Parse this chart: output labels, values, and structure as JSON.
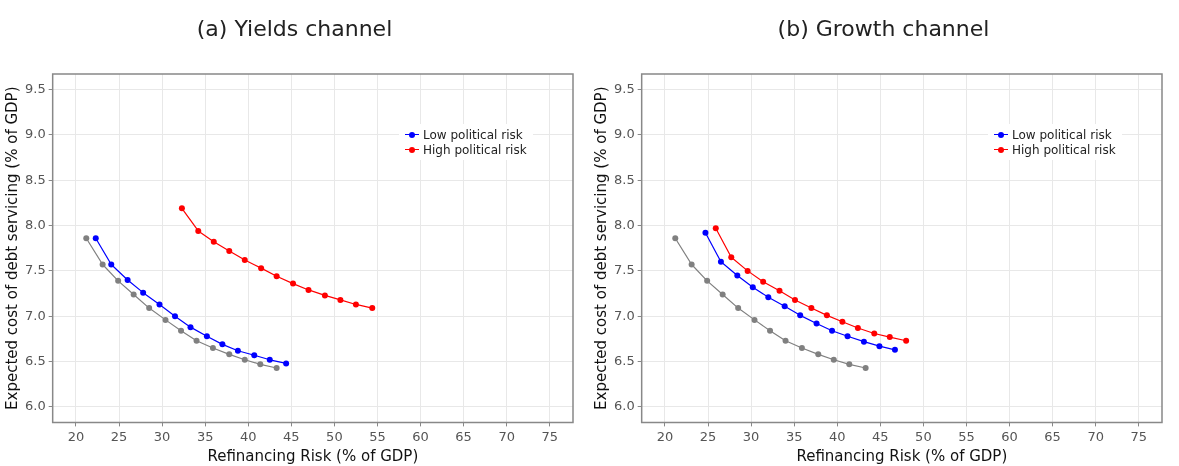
{
  "chart_data": [
    {
      "type": "line",
      "title": "(a) Yields channel",
      "xlabel": "Refinancing Risk (% of GDP)",
      "ylabel": "Expected cost of debt servicing (% of GDP)",
      "xlim": [
        17.3,
        77.7
      ],
      "ylim": [
        5.83,
        9.67
      ],
      "xticks": [
        20,
        25,
        30,
        35,
        40,
        45,
        50,
        55,
        60,
        65,
        70,
        75
      ],
      "yticks": [
        {
          "value": 6,
          "label": "6.0"
        },
        6.5,
        {
          "value": 7,
          "label": "7.0"
        },
        7.5,
        {
          "value": 8,
          "label": "8.0"
        },
        8.5,
        {
          "value": 9,
          "label": "9.0"
        },
        9.5
      ],
      "grid": true,
      "legend": "top right",
      "marker": "circle",
      "line_style": "solid",
      "series": [
        {
          "color": "#808080",
          "x": [
            21.2,
            23.1,
            24.9,
            26.7,
            28.5,
            30.4,
            32.2,
            34.0,
            35.9,
            37.8,
            39.6,
            41.4,
            43.3
          ],
          "values": [
            7.86,
            7.57,
            7.39,
            7.24,
            7.09,
            6.96,
            6.84,
            6.73,
            6.65,
            6.58,
            6.52,
            6.47,
            6.43
          ]
        },
        {
          "name": "Low political risk",
          "color": "#0000ff",
          "x": [
            22.3,
            24.1,
            26.0,
            27.8,
            29.7,
            31.5,
            33.3,
            35.2,
            37.0,
            38.8,
            40.7,
            42.5,
            44.4
          ],
          "values": [
            7.86,
            7.57,
            7.4,
            7.26,
            7.13,
            7.0,
            6.88,
            6.78,
            6.69,
            6.62,
            6.57,
            6.52,
            6.48
          ]
        },
        {
          "name": "High political risk",
          "color": "#ff0000",
          "x": [
            32.3,
            34.2,
            36.0,
            37.8,
            39.6,
            41.5,
            43.3,
            45.2,
            47.0,
            48.9,
            50.7,
            52.5,
            54.4
          ],
          "values": [
            8.19,
            7.94,
            7.82,
            7.72,
            7.62,
            7.53,
            7.44,
            7.36,
            7.29,
            7.23,
            7.18,
            7.13,
            7.09
          ]
        }
      ]
    },
    {
      "type": "line",
      "title": "(b)  Growth channel",
      "xlabel": "Refinancing Risk (% of GDP)",
      "ylabel": "Expected cost of debt servicing (% of GDP)",
      "xlim": [
        17.3,
        77.7
      ],
      "ylim": [
        5.83,
        9.67
      ],
      "xticks": [
        20,
        25,
        30,
        35,
        40,
        45,
        50,
        55,
        60,
        65,
        70,
        75
      ],
      "yticks": [
        {
          "value": 6,
          "label": "6.0"
        },
        6.5,
        {
          "value": 7,
          "label": "7.0"
        },
        7.5,
        {
          "value": 8,
          "label": "8.0"
        },
        8.5,
        {
          "value": 9,
          "label": "9.0"
        },
        9.5
      ],
      "grid": true,
      "legend": "top right",
      "marker": "circle",
      "line_style": "solid",
      "series": [
        {
          "color": "#808080",
          "x": [
            21.2,
            23.1,
            24.9,
            26.7,
            28.5,
            30.4,
            32.2,
            34.0,
            35.9,
            37.8,
            39.6,
            41.4,
            43.3
          ],
          "values": [
            7.86,
            7.57,
            7.39,
            7.24,
            7.09,
            6.96,
            6.84,
            6.73,
            6.65,
            6.58,
            6.52,
            6.47,
            6.43
          ]
        },
        {
          "name": "Low political risk",
          "color": "#0000ff",
          "x": [
            24.7,
            26.5,
            28.4,
            30.2,
            32.0,
            33.9,
            35.7,
            37.6,
            39.4,
            41.2,
            43.1,
            44.9,
            46.7
          ],
          "values": [
            7.92,
            7.6,
            7.45,
            7.32,
            7.21,
            7.11,
            7.01,
            6.92,
            6.84,
            6.78,
            6.72,
            6.67,
            6.63
          ]
        },
        {
          "name": "High political risk",
          "color": "#ff0000",
          "x": [
            25.9,
            27.7,
            29.6,
            31.4,
            33.3,
            35.1,
            37.0,
            38.8,
            40.6,
            42.4,
            44.3,
            46.1,
            48.0
          ],
          "values": [
            7.97,
            7.65,
            7.5,
            7.38,
            7.28,
            7.18,
            7.09,
            7.01,
            6.94,
            6.87,
            6.81,
            6.77,
            6.73
          ]
        }
      ]
    }
  ]
}
